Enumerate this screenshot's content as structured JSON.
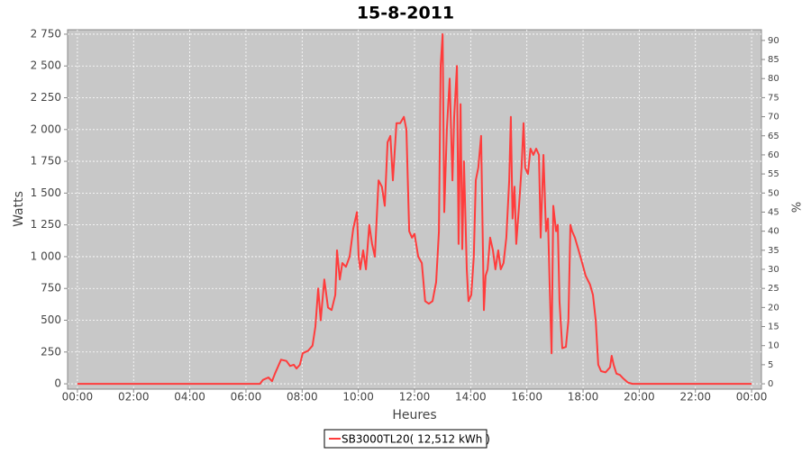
{
  "chart_data": {
    "type": "line",
    "title": "15-8-2011",
    "x_label": "Heures",
    "y_label": "Watts",
    "y2_label": "%",
    "xlim": [
      -0.35,
      24.35
    ],
    "xticks": [
      {
        "value": 0,
        "label": "00:00"
      },
      {
        "value": 2,
        "label": "02:00"
      },
      {
        "value": 4,
        "label": "04:00"
      },
      {
        "value": 6,
        "label": "06:00"
      },
      {
        "value": 8,
        "label": "08:00"
      },
      {
        "value": 10,
        "label": "10:00"
      },
      {
        "value": 12,
        "label": "12:00"
      },
      {
        "value": 14,
        "label": "14:00"
      },
      {
        "value": 16,
        "label": "16:00"
      },
      {
        "value": 18,
        "label": "18:00"
      },
      {
        "value": 20,
        "label": "20:00"
      },
      {
        "value": 22,
        "label": "22:00"
      },
      {
        "value": 24,
        "label": "00:00"
      }
    ],
    "ylim": [
      -42,
      2785
    ],
    "yticks": [
      0,
      {
        "value": 250,
        "label": "250"
      },
      {
        "value": 500,
        "label": "500"
      },
      {
        "value": 750,
        "label": "750"
      },
      {
        "value": 1000,
        "label": "1 000"
      },
      {
        "value": 1250,
        "label": "1 250"
      },
      {
        "value": 1500,
        "label": "1 500"
      },
      {
        "value": 1750,
        "label": "1 750"
      },
      {
        "value": 2000,
        "label": "2 000"
      },
      {
        "value": 2250,
        "label": "2 250"
      },
      {
        "value": 2500,
        "label": "2 500"
      },
      {
        "value": 2750,
        "label": "2 750"
      }
    ],
    "y2lim": [
      -1.4,
      92.8
    ],
    "y2ticks": [
      0,
      5,
      10,
      15,
      20,
      25,
      30,
      35,
      40,
      45,
      50,
      55,
      60,
      65,
      70,
      75,
      80,
      85,
      90
    ],
    "grid": true,
    "legend": "bottom",
    "x": [
      0,
      6.5,
      6.6,
      6.8,
      6.93,
      7.03,
      7.25,
      7.44,
      7.57,
      7.7,
      7.8,
      7.92,
      8.02,
      8.21,
      8.37,
      8.47,
      8.57,
      8.66,
      8.79,
      8.92,
      9.05,
      9.18,
      9.24,
      9.34,
      9.43,
      9.56,
      9.69,
      9.82,
      9.95,
      10.01,
      10.07,
      10.17,
      10.27,
      10.39,
      10.49,
      10.59,
      10.72,
      10.84,
      10.94,
      11.04,
      11.14,
      11.23,
      11.36,
      11.49,
      11.62,
      11.71,
      11.81,
      11.91,
      12.0,
      12.13,
      12.26,
      12.38,
      12.51,
      12.64,
      12.77,
      12.87,
      12.93,
      13.0,
      13.06,
      13.15,
      13.25,
      13.35,
      13.41,
      13.51,
      13.57,
      13.64,
      13.7,
      13.76,
      13.86,
      13.92,
      14.02,
      14.11,
      14.18,
      14.27,
      14.37,
      14.47,
      14.53,
      14.6,
      14.69,
      14.79,
      14.88,
      14.98,
      15.07,
      15.17,
      15.27,
      15.37,
      15.43,
      15.49,
      15.56,
      15.62,
      15.72,
      15.81,
      15.88,
      15.94,
      16.04,
      16.13,
      16.23,
      16.33,
      16.43,
      16.49,
      16.59,
      16.68,
      16.75,
      16.81,
      16.88,
      16.94,
      17.04,
      17.1,
      17.16,
      17.26,
      17.39,
      17.48,
      17.55,
      17.61,
      17.71,
      17.84,
      17.97,
      18.09,
      18.25,
      18.35,
      18.45,
      18.54,
      18.64,
      18.8,
      18.96,
      19.02,
      19.09,
      19.19,
      19.31,
      19.44,
      19.6,
      19.76,
      24
    ],
    "series": [
      {
        "name": "SB3000TL20( 12,512 kWh )",
        "color": "#ff3c3c",
        "values": [
          0,
          0,
          30,
          50,
          20,
          80,
          190,
          180,
          140,
          150,
          120,
          150,
          240,
          260,
          300,
          450,
          750,
          500,
          820,
          600,
          580,
          700,
          1050,
          820,
          950,
          920,
          1000,
          1220,
          1350,
          1000,
          900,
          1050,
          900,
          1250,
          1100,
          1000,
          1600,
          1550,
          1400,
          1900,
          1950,
          1600,
          2050,
          2050,
          2100,
          2000,
          1200,
          1150,
          1180,
          1000,
          950,
          650,
          630,
          650,
          800,
          1200,
          2500,
          2750,
          1350,
          2000,
          2400,
          1600,
          2100,
          2500,
          1100,
          2200,
          1060,
          1750,
          900,
          650,
          700,
          1000,
          1600,
          1700,
          1950,
          580,
          850,
          900,
          1150,
          1050,
          900,
          1050,
          900,
          950,
          1150,
          1600,
          2100,
          1300,
          1550,
          1100,
          1400,
          1700,
          2050,
          1700,
          1650,
          1850,
          1800,
          1850,
          1800,
          1150,
          1800,
          1200,
          1300,
          800,
          240,
          1400,
          1200,
          1250,
          650,
          280,
          290,
          500,
          1250,
          1200,
          1150,
          1050,
          950,
          850,
          780,
          700,
          500,
          150,
          100,
          90,
          130,
          220,
          150,
          80,
          70,
          40,
          10,
          0,
          0
        ]
      }
    ]
  }
}
